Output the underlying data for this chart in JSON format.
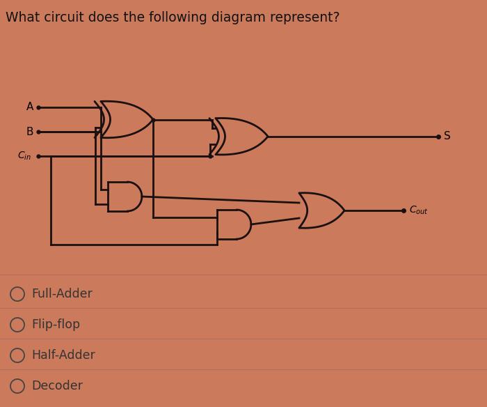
{
  "title": "What circuit does the following diagram represent?",
  "bg_top": "#c8785a",
  "bg_bottom": "#e8c8aa",
  "background_color": "#cc7a5c",
  "options": [
    "Full-Adder",
    "Flip-flop",
    "Half-Adder",
    "Decoder"
  ],
  "line_color": "#1a1010",
  "title_fontsize": 13.5,
  "option_fontsize": 12.5,
  "lw": 2.0
}
